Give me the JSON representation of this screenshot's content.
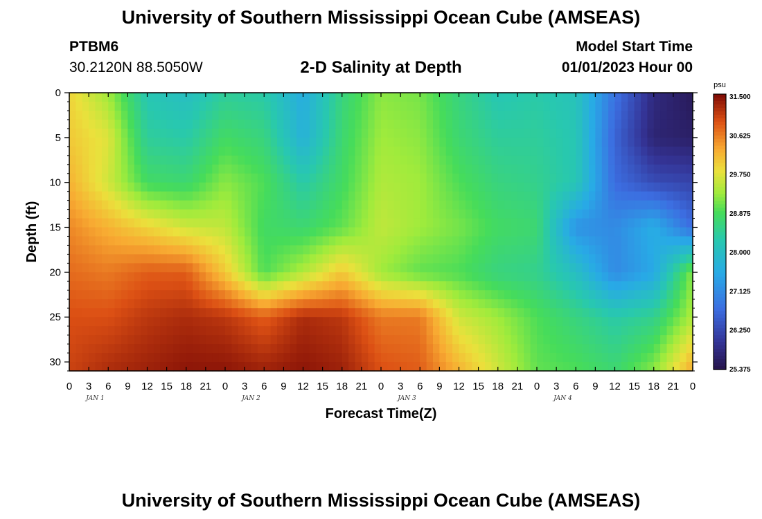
{
  "header": {
    "title": "University of Southern Mississippi Ocean Cube (AMSEAS)",
    "station_id": "PTBM6",
    "coordinates": "30.2120N  88.5050W",
    "plot_title": "2-D Salinity at Depth",
    "model_start_label": "Model Start Time",
    "model_start_value": "01/01/2023 Hour 00"
  },
  "footer": {
    "title": "University of Southern Mississippi Ocean Cube (AMSEAS)"
  },
  "chart_data": {
    "type": "heatmap",
    "title": "2-D Salinity at Depth",
    "xlabel": "Forecast Time(Z)",
    "ylabel": "Depth (ft)",
    "x_tick_labels": [
      "0",
      "3",
      "6",
      "9",
      "12",
      "15",
      "18",
      "21",
      "0",
      "3",
      "6",
      "9",
      "12",
      "15",
      "18",
      "21",
      "0",
      "3",
      "6",
      "9",
      "12",
      "15",
      "18",
      "21",
      "0",
      "3",
      "6",
      "9",
      "12",
      "15",
      "18",
      "21",
      "0"
    ],
    "day_labels": [
      "JAN 1",
      "JAN 2",
      "JAN 3",
      "JAN 4"
    ],
    "x_range_hours": [
      0,
      96
    ],
    "y_ticks": [
      0,
      5,
      10,
      15,
      20,
      25,
      30
    ],
    "y_range": [
      0,
      31
    ],
    "colorbar": {
      "unit": "psu",
      "ticks": [
        "31.500",
        "30.625",
        "29.750",
        "28.875",
        "28.000",
        "27.125",
        "26.250",
        "25.375"
      ],
      "range": [
        25.375,
        31.5
      ]
    },
    "x_hours": [
      0,
      6,
      12,
      18,
      24,
      30,
      36,
      42,
      48,
      54,
      60,
      66,
      72,
      78,
      84,
      90,
      96
    ],
    "depths": [
      0,
      5,
      10,
      15,
      20,
      25,
      31
    ],
    "values": [
      [
        29.9,
        29.3,
        28.2,
        28.0,
        28.4,
        28.3,
        27.6,
        28.6,
        29.2,
        29.1,
        28.6,
        28.2,
        28.3,
        28.1,
        26.8,
        25.8,
        25.5
      ],
      [
        30.0,
        29.7,
        28.4,
        28.3,
        28.8,
        28.6,
        27.7,
        28.7,
        29.3,
        29.2,
        28.7,
        28.4,
        28.4,
        28.2,
        26.6,
        25.7,
        25.6
      ],
      [
        30.2,
        29.6,
        28.8,
        28.7,
        29.2,
        28.9,
        28.3,
        28.8,
        29.4,
        29.3,
        28.9,
        28.6,
        28.5,
        28.2,
        26.7,
        26.3,
        26.2
      ],
      [
        30.5,
        30.2,
        29.9,
        29.6,
        29.5,
        28.8,
        28.7,
        29.0,
        29.5,
        29.3,
        29.1,
        28.8,
        28.7,
        27.2,
        27.1,
        27.6,
        26.7
      ],
      [
        30.7,
        30.6,
        30.8,
        30.8,
        30.0,
        28.9,
        29.4,
        30.0,
        29.3,
        29.0,
        28.9,
        28.6,
        28.5,
        28.0,
        27.1,
        27.5,
        29.2
      ],
      [
        30.9,
        30.9,
        31.1,
        31.2,
        31.1,
        30.8,
        31.2,
        31.1,
        30.6,
        30.6,
        29.6,
        29.3,
        28.9,
        28.6,
        28.3,
        28.5,
        29.4
      ],
      [
        31.0,
        31.2,
        31.3,
        31.4,
        31.4,
        31.3,
        31.4,
        31.3,
        30.9,
        30.8,
        30.2,
        29.6,
        29.0,
        28.9,
        28.7,
        29.2,
        30.3
      ]
    ]
  }
}
